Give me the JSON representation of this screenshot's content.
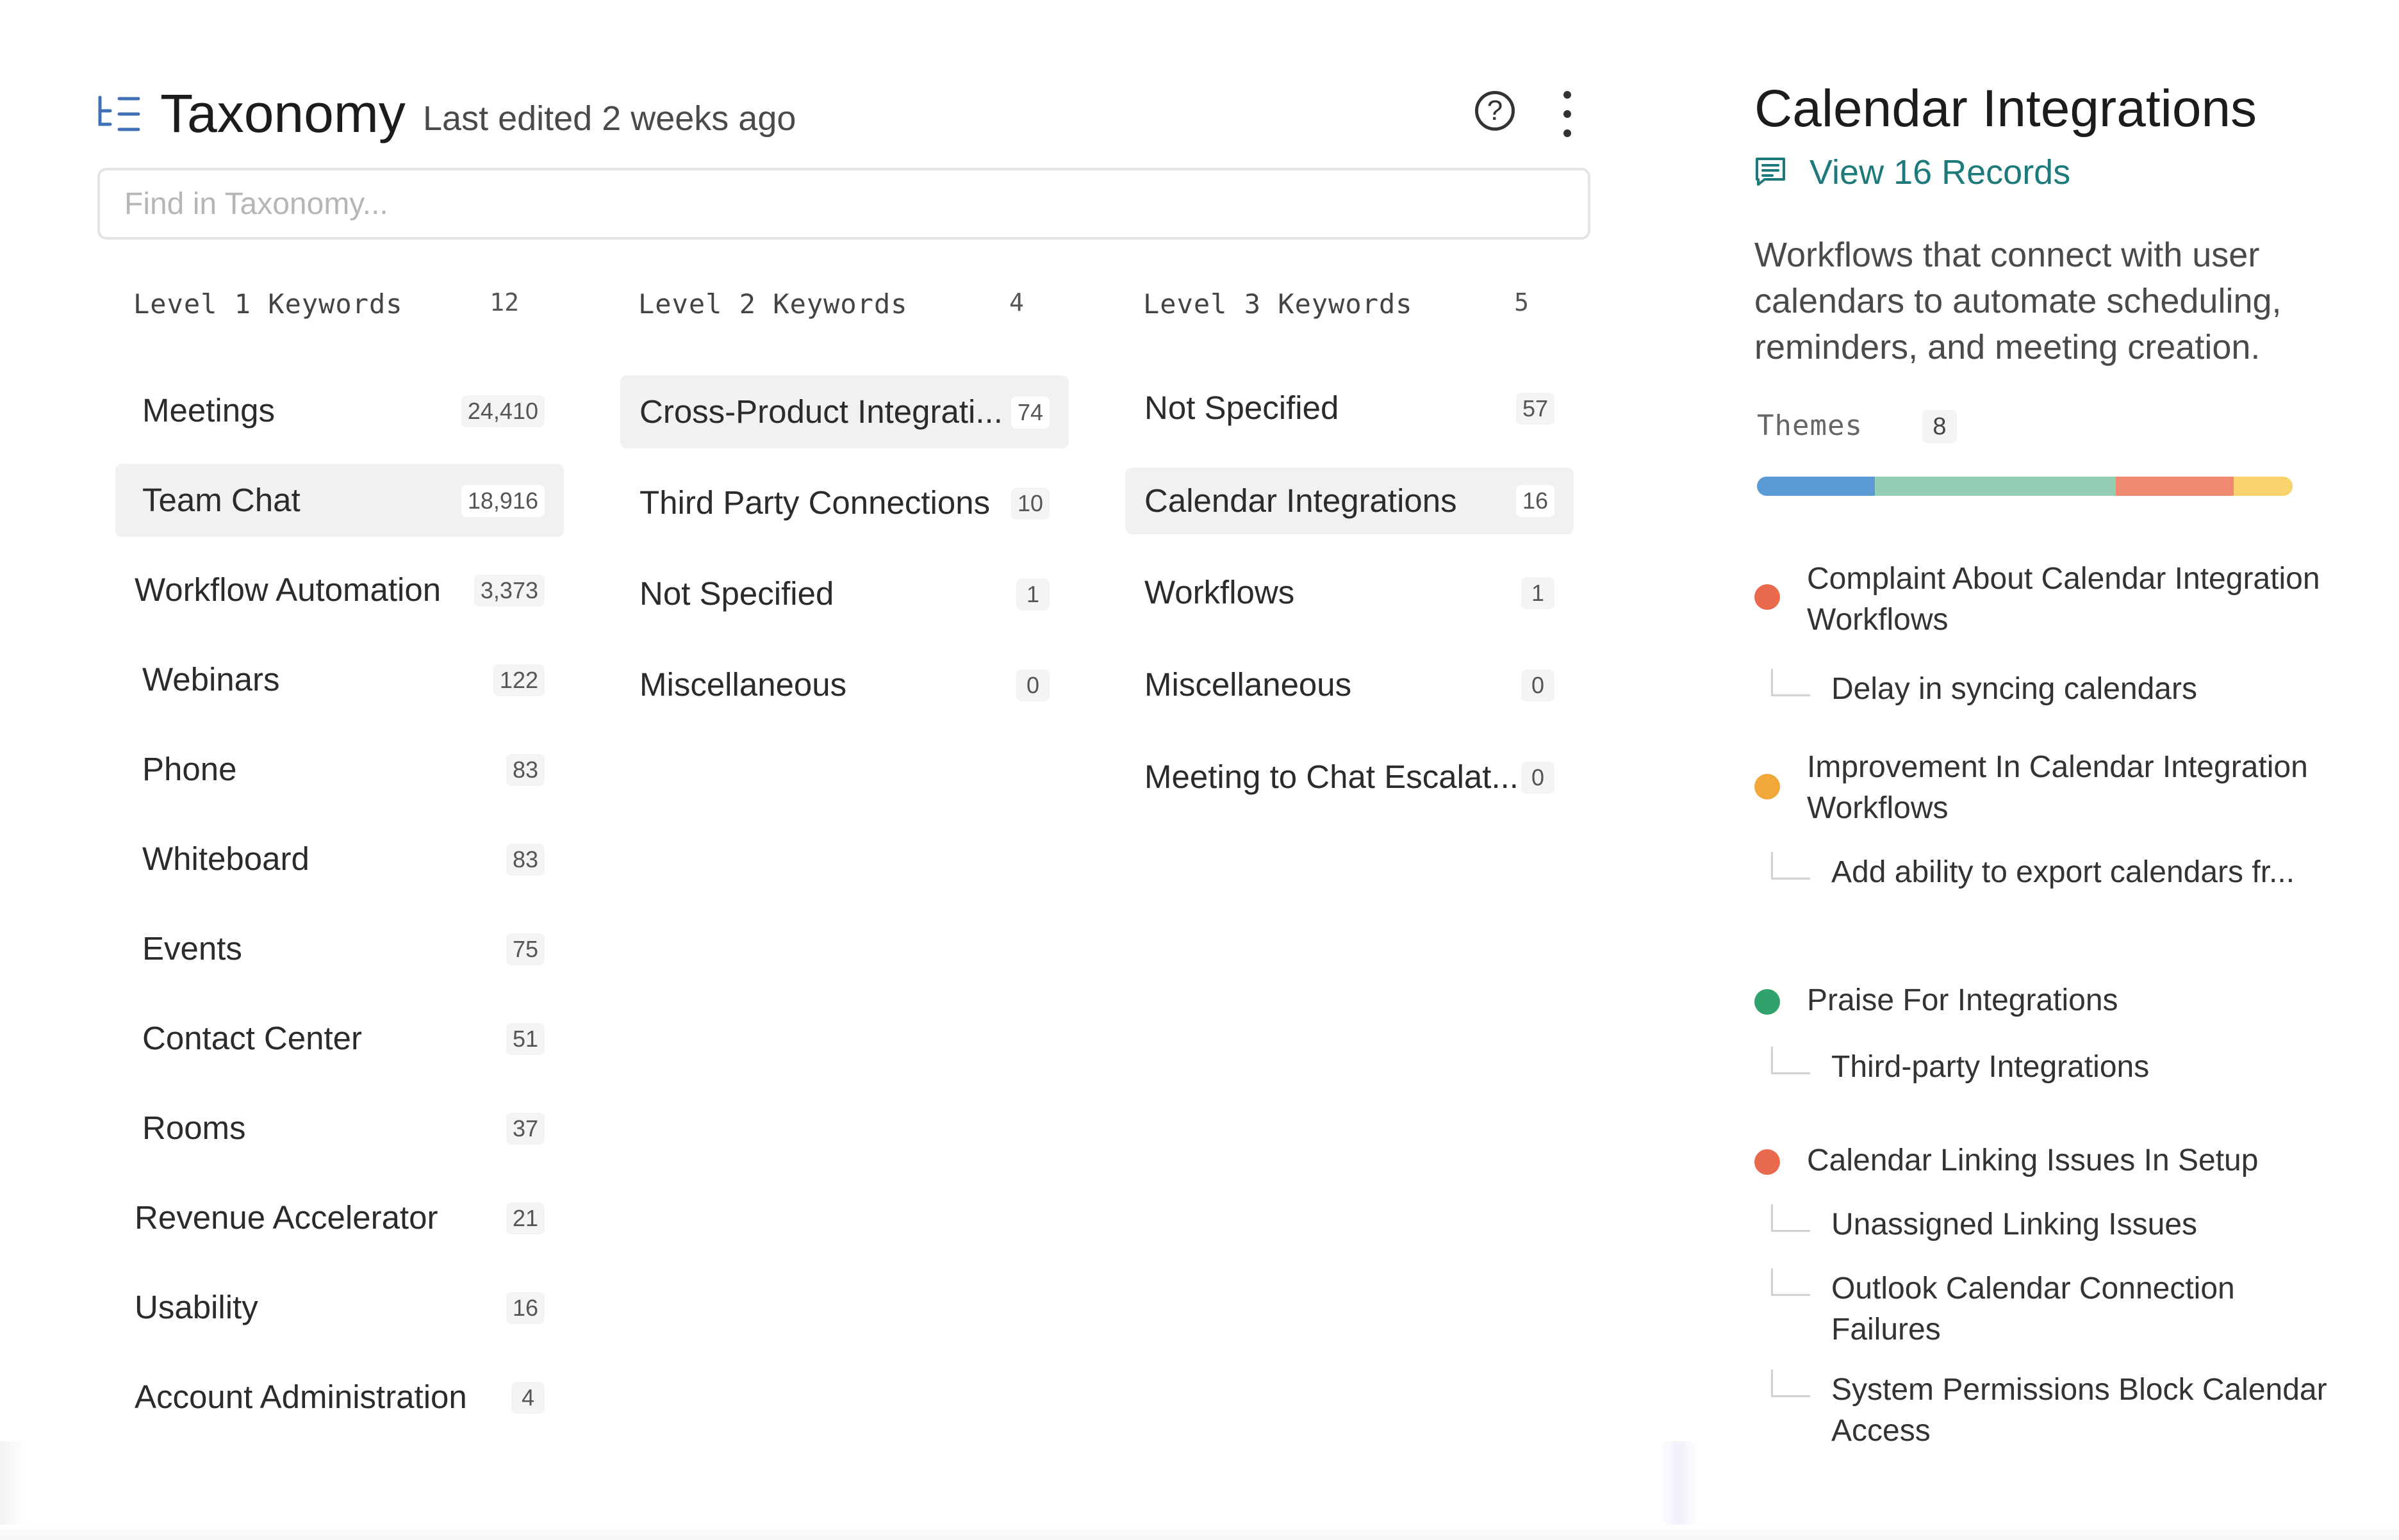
{
  "header": {
    "title": "Taxonomy",
    "subtitle": "Last edited 2 weeks ago",
    "help_icon": "question-circle-icon",
    "more_icon": "vertical-dots-icon"
  },
  "search": {
    "placeholder": "Find in Taxonomy..."
  },
  "columns": [
    {
      "label": "Level 1 Keywords",
      "count": "12",
      "items": [
        {
          "label": "Meetings",
          "count": "24,410"
        },
        {
          "label": "Team Chat",
          "count": "18,916",
          "selected": true
        },
        {
          "label": "Workflow Automation",
          "count": "3,373"
        },
        {
          "label": "Webinars",
          "count": "122"
        },
        {
          "label": "Phone",
          "count": "83"
        },
        {
          "label": "Whiteboard",
          "count": "83"
        },
        {
          "label": "Events",
          "count": "75"
        },
        {
          "label": "Contact Center",
          "count": "51"
        },
        {
          "label": "Rooms",
          "count": "37"
        },
        {
          "label": "Revenue Accelerator",
          "count": "21"
        },
        {
          "label": "Usability",
          "count": "16"
        },
        {
          "label": "Account Administration",
          "count": "4"
        }
      ]
    },
    {
      "label": "Level 2 Keywords",
      "count": "4",
      "items": [
        {
          "label": "Cross-Product Integrati...",
          "count": "74",
          "selected": true
        },
        {
          "label": "Third Party Connections",
          "count": "10"
        },
        {
          "label": "Not Specified",
          "count": "1"
        },
        {
          "label": "Miscellaneous",
          "count": "0"
        }
      ]
    },
    {
      "label": "Level 3 Keywords",
      "count": "5",
      "items": [
        {
          "label": "Not Specified",
          "count": "57"
        },
        {
          "label": "Calendar Integrations",
          "count": "16",
          "selected": true
        },
        {
          "label": "Workflows",
          "count": "1"
        },
        {
          "label": "Miscellaneous",
          "count": "0"
        },
        {
          "label": "Meeting to Chat Escalat...",
          "count": "0"
        }
      ]
    }
  ],
  "panel": {
    "title": "Calendar Integrations",
    "records_link": "View 16 Records",
    "records_icon": "document-list-icon",
    "description": "Workflows that connect with user calendars to automate scheduling, reminders, and meeting creation.",
    "themes_label": "Themes",
    "themes_count": "8",
    "theme_bar_colors": [
      "#5b9bd5",
      "#93cfb5",
      "#ee8a70",
      "#f8d26a"
    ],
    "theme_bar_fractions": [
      0.22,
      0.45,
      0.22,
      0.11
    ],
    "themes": [
      {
        "title": "Complaint About Calendar Integration Workflows",
        "kind": "complaint",
        "color": "#ea6a4f",
        "subs": [
          "Delay in syncing calendars"
        ]
      },
      {
        "title": "Improvement In Calendar Integration Workflows",
        "kind": "improvement",
        "color": "#f2a73b",
        "subs": [
          "Add ability to export calendars fr..."
        ]
      },
      {
        "title": "Praise For Integrations",
        "kind": "praise",
        "color": "#2fa36b",
        "subs": [
          "Third-party Integrations"
        ]
      },
      {
        "title": "Calendar Linking Issues In Setup",
        "kind": "complaint",
        "color": "#ea6a4f",
        "subs": [
          "Unassigned Linking Issues",
          "Outlook Calendar Connection Failures",
          "System Permissions Block Calendar Access"
        ]
      }
    ]
  }
}
